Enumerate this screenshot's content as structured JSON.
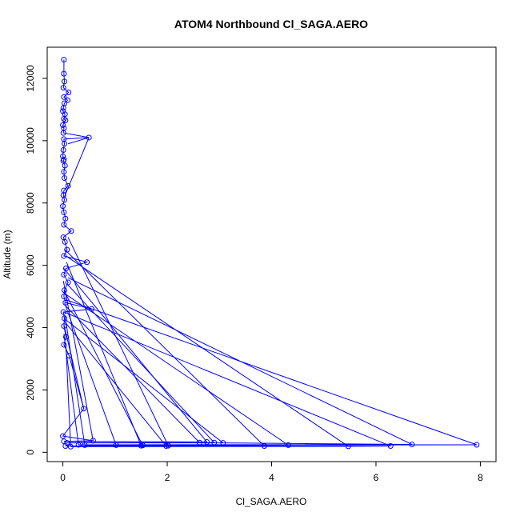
{
  "chart_data": {
    "type": "scatter",
    "title": "ATOM4 Northbound Cl_SAGA.AERO",
    "xlabel": "Cl_SAGA.AERO",
    "ylabel": "Altitude (m)",
    "xlim": [
      -0.3,
      8.3
    ],
    "ylim": [
      -300,
      13000
    ],
    "x_ticks": [
      0,
      2,
      4,
      6,
      8
    ],
    "y_ticks": [
      0,
      2000,
      4000,
      6000,
      8000,
      10000,
      12000
    ],
    "series": [
      {
        "color": "#0000ff",
        "marker": "open-circle",
        "connected": true,
        "points": [
          [
            0.02,
            12600
          ],
          [
            0.02,
            12150
          ],
          [
            0.03,
            11900
          ],
          [
            0.01,
            11700
          ],
          [
            0.11,
            11550
          ],
          [
            0.02,
            11400
          ],
          [
            0.09,
            11300
          ],
          [
            0.03,
            11200
          ],
          [
            0.01,
            11050
          ],
          [
            0.0,
            10950
          ],
          [
            0.04,
            10850
          ],
          [
            0.02,
            10700
          ],
          [
            0.05,
            10650
          ],
          [
            0.0,
            10500
          ],
          [
            0.02,
            10400
          ],
          [
            0.01,
            10250
          ],
          [
            0.5,
            10100
          ],
          [
            0.02,
            10050
          ],
          [
            0.03,
            9900
          ],
          [
            0.01,
            9700
          ],
          [
            0.0,
            9500
          ],
          [
            0.02,
            9400
          ],
          [
            0.01,
            9350
          ],
          [
            0.04,
            9200
          ],
          [
            0.02,
            9000
          ],
          [
            0.03,
            8800
          ],
          [
            0.1,
            8550
          ],
          [
            0.02,
            8400
          ],
          [
            0.01,
            8250
          ],
          [
            0.03,
            8100
          ],
          [
            0.0,
            7900
          ],
          [
            0.02,
            7700
          ],
          [
            0.05,
            7500
          ],
          [
            0.02,
            7300
          ],
          [
            0.16,
            7100
          ],
          [
            0.01,
            6900
          ],
          [
            0.04,
            6750
          ],
          [
            0.08,
            6500
          ],
          [
            0.02,
            6300
          ],
          [
            0.46,
            6100
          ],
          [
            0.06,
            5900
          ],
          [
            0.02,
            5700
          ],
          [
            0.1,
            5450
          ],
          [
            0.03,
            5200
          ],
          [
            0.02,
            5000
          ],
          [
            0.05,
            4800
          ],
          [
            0.55,
            4600
          ],
          [
            0.01,
            4500
          ],
          [
            0.03,
            4300
          ],
          [
            0.02,
            4050
          ],
          [
            0.06,
            3700
          ],
          [
            0.02,
            3450
          ],
          [
            0.12,
            3100
          ],
          [
            0.4,
            1400
          ],
          [
            0.0,
            520
          ],
          [
            0.02,
            350
          ],
          [
            0.08,
            300
          ],
          [
            0.05,
            200
          ],
          [
            0.15,
            180
          ],
          [
            0.3,
            240
          ],
          [
            0.42,
            230
          ],
          [
            0.58,
            370
          ],
          [
            1.02,
            230
          ],
          [
            1.5,
            210
          ],
          [
            1.53,
            220
          ],
          [
            1.98,
            200
          ],
          [
            2.02,
            210
          ],
          [
            2.62,
            310
          ],
          [
            2.76,
            330
          ],
          [
            2.9,
            310
          ],
          [
            3.07,
            300
          ],
          [
            3.86,
            200
          ],
          [
            4.32,
            230
          ],
          [
            5.47,
            190
          ],
          [
            6.28,
            200
          ],
          [
            6.69,
            250
          ],
          [
            7.93,
            240
          ]
        ],
        "segments": [
          [
            [
              7.93,
              240
            ],
            [
              0.05,
              4900
            ]
          ],
          [
            [
              6.69,
              250
            ],
            [
              0.1,
              5600
            ]
          ],
          [
            [
              6.28,
              200
            ],
            [
              0.02,
              4500
            ]
          ],
          [
            [
              5.47,
              190
            ],
            [
              0.06,
              6300
            ]
          ],
          [
            [
              4.32,
              230
            ],
            [
              0.03,
              5100
            ]
          ],
          [
            [
              3.86,
              200
            ],
            [
              0.04,
              6500
            ]
          ],
          [
            [
              3.07,
              300
            ],
            [
              0.02,
              4300
            ]
          ],
          [
            [
              2.9,
              310
            ],
            [
              0.08,
              5400
            ]
          ],
          [
            [
              2.76,
              330
            ],
            [
              0.02,
              5900
            ]
          ],
          [
            [
              2.62,
              310
            ],
            [
              0.05,
              4700
            ]
          ],
          [
            [
              2.02,
              210
            ],
            [
              0.1,
              6900
            ]
          ],
          [
            [
              1.98,
              200
            ],
            [
              0.03,
              4200
            ]
          ],
          [
            [
              1.53,
              220
            ],
            [
              0.02,
              5200
            ]
          ],
          [
            [
              1.5,
              210
            ],
            [
              0.07,
              6100
            ]
          ],
          [
            [
              1.02,
              230
            ],
            [
              0.03,
              4800
            ]
          ],
          [
            [
              0.58,
              370
            ],
            [
              0.01,
              5500
            ]
          ],
          [
            [
              0.42,
              230
            ],
            [
              0.04,
              4400
            ]
          ],
          [
            [
              0.3,
              240
            ],
            [
              0.02,
              3800
            ]
          ],
          [
            [
              0.15,
              180
            ],
            [
              0.06,
              3400
            ]
          ],
          [
            [
              0.4,
              1400
            ],
            [
              0.02,
              4100
            ]
          ],
          [
            [
              0.5,
              10100
            ],
            [
              0.1,
              9900
            ]
          ],
          [
            [
              0.5,
              10100
            ],
            [
              0.03,
              8200
            ]
          ]
        ]
      }
    ]
  }
}
